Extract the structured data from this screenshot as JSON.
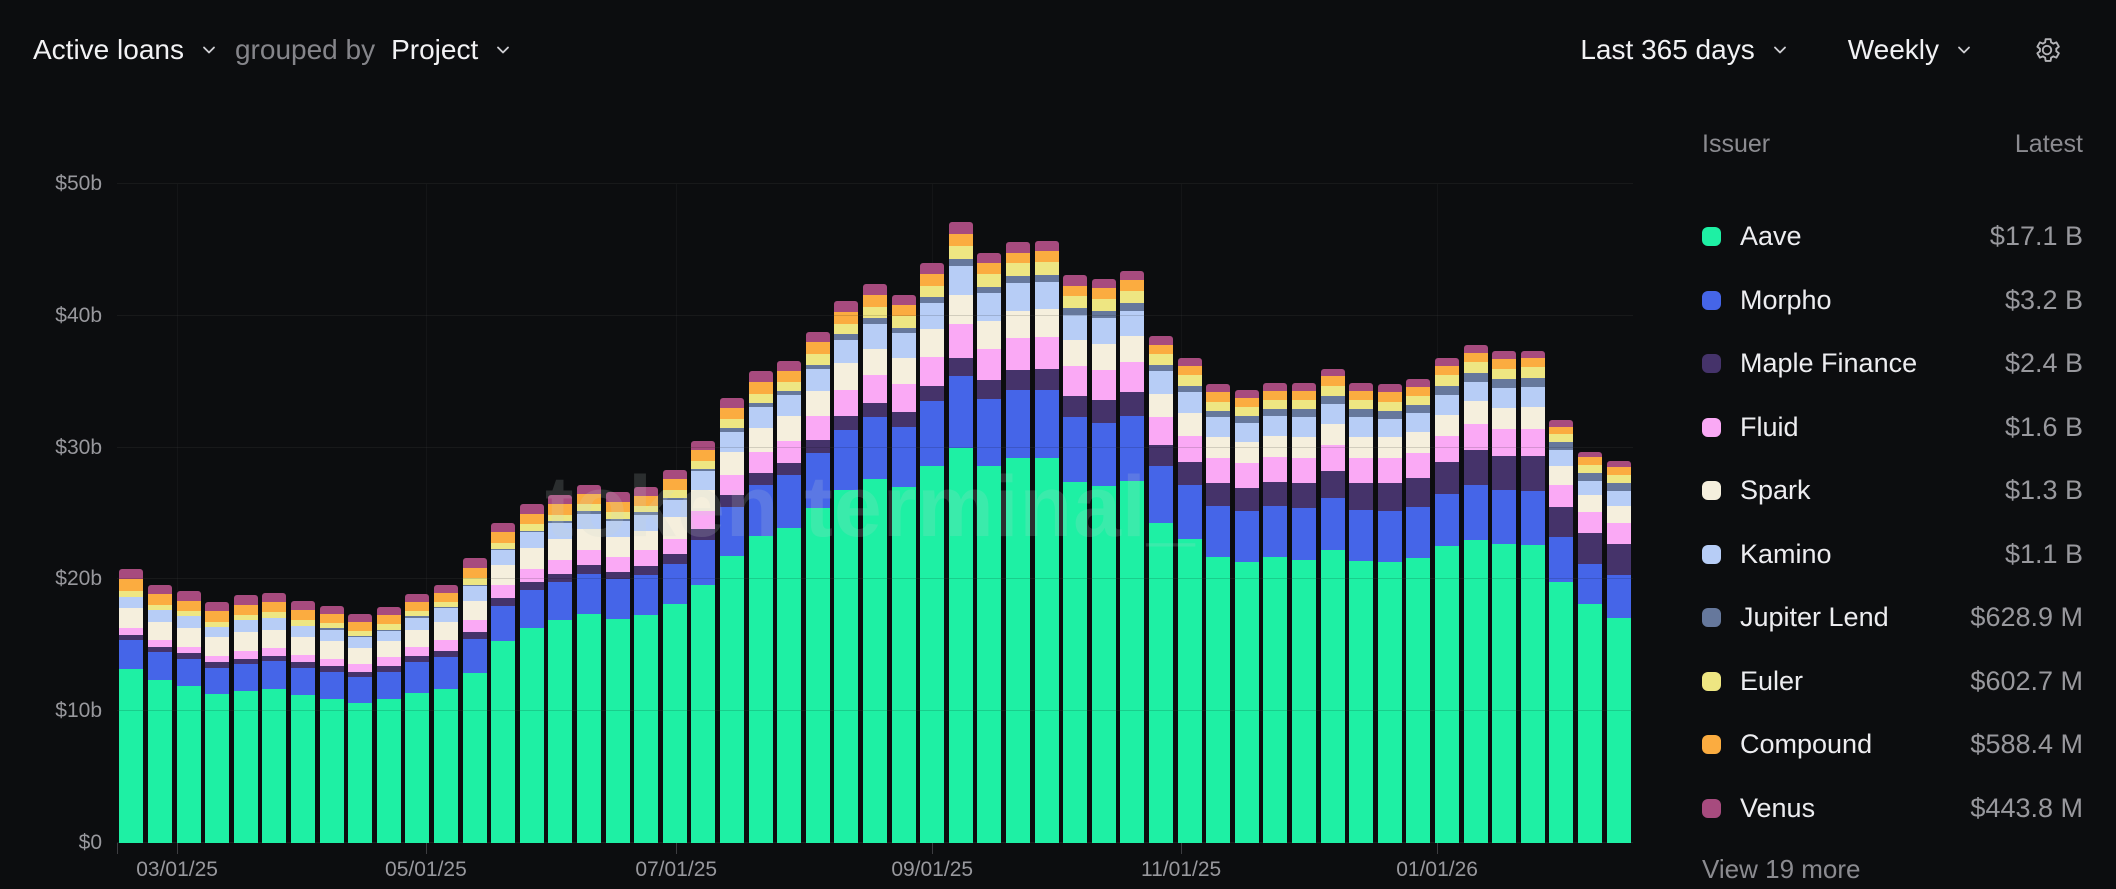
{
  "header": {
    "metric_label": "Active loans",
    "grouped_by_label": "grouped by",
    "group_value": "Project",
    "range_value": "Last 365 days",
    "interval_value": "Weekly"
  },
  "watermark": "token terminal_",
  "legend": {
    "issuer_header": "Issuer",
    "latest_header": "Latest",
    "view_more_label": "View 19 more",
    "items": [
      {
        "name": "Aave",
        "latest": "$17.1 B",
        "color": "#1ef0a4"
      },
      {
        "name": "Morpho",
        "latest": "$3.2 B",
        "color": "#4565e8"
      },
      {
        "name": "Maple Finance",
        "latest": "$2.4 B",
        "color": "#45336a"
      },
      {
        "name": "Fluid",
        "latest": "$1.6 B",
        "color": "#faa9f5"
      },
      {
        "name": "Spark",
        "latest": "$1.3 B",
        "color": "#f5efdd"
      },
      {
        "name": "Kamino",
        "latest": "$1.1 B",
        "color": "#b7cdf6"
      },
      {
        "name": "Jupiter Lend",
        "latest": "$628.9 M",
        "color": "#66789c"
      },
      {
        "name": "Euler",
        "latest": "$602.7 M",
        "color": "#eee682"
      },
      {
        "name": "Compound",
        "latest": "$588.4 M",
        "color": "#fbac40"
      },
      {
        "name": "Venus",
        "latest": "$443.8 M",
        "color": "#a74b7e"
      }
    ]
  },
  "chart_data": {
    "type": "bar",
    "stacked": true,
    "weeks": 53,
    "y_unit": "$ billions",
    "ylim": [
      0,
      50
    ],
    "grid": true,
    "legend_position": "right",
    "y_ticks": [
      {
        "label": "$0",
        "value": 0
      },
      {
        "label": "$10b",
        "value": 10
      },
      {
        "label": "$20b",
        "value": 20
      },
      {
        "label": "$30b",
        "value": 30
      },
      {
        "label": "$40b",
        "value": 40
      },
      {
        "label": "$50b",
        "value": 50
      }
    ],
    "x_ticks": [
      {
        "label": "03/01/25",
        "index": 2.1
      },
      {
        "label": "05/01/25",
        "index": 10.8
      },
      {
        "label": "07/01/25",
        "index": 19.55
      },
      {
        "label": "09/01/25",
        "index": 28.5
      },
      {
        "label": "11/01/25",
        "index": 37.2
      },
      {
        "label": "01/01/26",
        "index": 46.15
      }
    ],
    "series": [
      {
        "name": "Aave",
        "color": "#1ef0a4",
        "values": [
          13.2,
          12.4,
          11.9,
          11.3,
          11.5,
          11.7,
          11.2,
          10.9,
          10.6,
          10.9,
          11.4,
          11.7,
          12.9,
          15.3,
          16.3,
          16.9,
          17.4,
          17.0,
          17.3,
          18.1,
          19.6,
          21.8,
          23.3,
          23.9,
          25.4,
          26.8,
          27.6,
          27.0,
          28.6,
          30.0,
          28.6,
          29.2,
          29.2,
          27.4,
          27.1,
          27.5,
          24.3,
          23.1,
          21.7,
          21.3,
          21.7,
          21.5,
          22.2,
          21.4,
          21.3,
          21.6,
          22.5,
          23.0,
          22.7,
          22.6,
          19.8,
          18.1,
          17.1
        ]
      },
      {
        "name": "Morpho",
        "color": "#4565e8",
        "values": [
          2.2,
          2.1,
          2.1,
          2.0,
          2.1,
          2.1,
          2.1,
          2.1,
          2.0,
          2.1,
          2.3,
          2.4,
          2.6,
          2.7,
          2.9,
          2.9,
          3.0,
          3.0,
          3.0,
          3.1,
          3.4,
          3.7,
          3.9,
          4.0,
          4.2,
          4.5,
          4.7,
          4.6,
          4.9,
          5.4,
          5.1,
          5.2,
          5.2,
          4.9,
          4.8,
          4.9,
          4.3,
          4.1,
          3.9,
          3.9,
          3.9,
          3.9,
          4.0,
          3.9,
          3.9,
          3.9,
          4.0,
          4.2,
          4.1,
          4.1,
          3.4,
          3.1,
          3.2
        ]
      },
      {
        "name": "Maple Finance",
        "color": "#45336a",
        "values": [
          0.4,
          0.4,
          0.4,
          0.4,
          0.4,
          0.4,
          0.4,
          0.4,
          0.4,
          0.4,
          0.5,
          0.5,
          0.5,
          0.6,
          0.6,
          0.6,
          0.7,
          0.6,
          0.7,
          0.7,
          0.8,
          0.9,
          0.9,
          0.9,
          1.0,
          1.1,
          1.1,
          1.1,
          1.2,
          1.4,
          1.4,
          1.5,
          1.6,
          1.6,
          1.7,
          1.8,
          1.6,
          1.7,
          1.7,
          1.7,
          1.8,
          1.9,
          2.0,
          2.0,
          2.1,
          2.2,
          2.4,
          2.6,
          2.6,
          2.7,
          2.3,
          2.3,
          2.4
        ]
      },
      {
        "name": "Fluid",
        "color": "#faa9f5",
        "values": [
          0.5,
          0.5,
          0.5,
          0.5,
          0.6,
          0.6,
          0.6,
          0.6,
          0.6,
          0.7,
          0.7,
          0.8,
          0.9,
          1.0,
          1.0,
          1.1,
          1.1,
          1.1,
          1.2,
          1.2,
          1.4,
          1.5,
          1.6,
          1.7,
          1.8,
          2.0,
          2.1,
          2.1,
          2.2,
          2.6,
          2.4,
          2.4,
          2.4,
          2.3,
          2.3,
          2.3,
          2.1,
          2.0,
          1.9,
          1.9,
          1.9,
          1.9,
          2.0,
          1.9,
          1.9,
          1.9,
          2.0,
          2.0,
          2.0,
          2.0,
          1.7,
          1.6,
          1.6
        ]
      },
      {
        "name": "Spark",
        "color": "#f5efdd",
        "values": [
          1.5,
          1.4,
          1.4,
          1.4,
          1.4,
          1.4,
          1.3,
          1.3,
          1.2,
          1.2,
          1.3,
          1.4,
          1.5,
          1.5,
          1.6,
          1.6,
          1.6,
          1.5,
          1.5,
          1.6,
          1.6,
          1.8,
          1.8,
          1.9,
          1.9,
          2.0,
          2.0,
          2.0,
          2.1,
          2.2,
          2.1,
          2.1,
          2.1,
          2.0,
          2.0,
          2.0,
          1.8,
          1.7,
          1.6,
          1.6,
          1.6,
          1.6,
          1.6,
          1.6,
          1.6,
          1.6,
          1.6,
          1.7,
          1.6,
          1.7,
          1.4,
          1.3,
          1.3
        ]
      },
      {
        "name": "Kamino",
        "color": "#b7cdf6",
        "values": [
          0.9,
          0.9,
          0.9,
          0.8,
          0.9,
          0.9,
          0.9,
          0.9,
          0.8,
          0.8,
          0.9,
          1.0,
          1.1,
          1.1,
          1.2,
          1.2,
          1.2,
          1.2,
          1.2,
          1.3,
          1.4,
          1.5,
          1.6,
          1.6,
          1.7,
          1.8,
          1.9,
          1.9,
          2.0,
          2.2,
          2.1,
          2.1,
          2.1,
          1.9,
          1.9,
          1.9,
          1.7,
          1.6,
          1.5,
          1.5,
          1.5,
          1.5,
          1.5,
          1.5,
          1.4,
          1.4,
          1.5,
          1.5,
          1.5,
          1.5,
          1.2,
          1.1,
          1.1
        ]
      },
      {
        "name": "Jupiter Lend",
        "color": "#66789c",
        "values": [
          0.0,
          0.0,
          0.0,
          0.0,
          0.0,
          0.0,
          0.0,
          0.1,
          0.1,
          0.1,
          0.1,
          0.1,
          0.1,
          0.1,
          0.1,
          0.1,
          0.2,
          0.2,
          0.2,
          0.2,
          0.2,
          0.3,
          0.3,
          0.3,
          0.3,
          0.4,
          0.4,
          0.4,
          0.4,
          0.5,
          0.5,
          0.5,
          0.5,
          0.5,
          0.6,
          0.6,
          0.5,
          0.5,
          0.5,
          0.5,
          0.5,
          0.6,
          0.6,
          0.6,
          0.6,
          0.6,
          0.7,
          0.7,
          0.7,
          0.7,
          0.6,
          0.6,
          0.63
        ]
      },
      {
        "name": "Euler",
        "color": "#eee682",
        "values": [
          0.4,
          0.4,
          0.4,
          0.4,
          0.4,
          0.4,
          0.4,
          0.4,
          0.4,
          0.4,
          0.4,
          0.4,
          0.5,
          0.5,
          0.5,
          0.5,
          0.5,
          0.5,
          0.5,
          0.6,
          0.6,
          0.7,
          0.7,
          0.7,
          0.8,
          0.8,
          0.9,
          0.9,
          0.9,
          1.0,
          1.0,
          1.0,
          1.0,
          0.9,
          0.9,
          0.9,
          0.8,
          0.8,
          0.7,
          0.7,
          0.7,
          0.7,
          0.8,
          0.7,
          0.7,
          0.7,
          0.8,
          0.8,
          0.8,
          0.8,
          0.6,
          0.6,
          0.6
        ]
      },
      {
        "name": "Compound",
        "color": "#fbac40",
        "values": [
          0.9,
          0.8,
          0.8,
          0.8,
          0.8,
          0.8,
          0.8,
          0.7,
          0.7,
          0.7,
          0.7,
          0.7,
          0.8,
          0.8,
          0.8,
          0.8,
          0.8,
          0.8,
          0.7,
          0.8,
          0.8,
          0.8,
          0.9,
          0.8,
          0.9,
          0.9,
          0.9,
          0.8,
          0.9,
          0.9,
          0.8,
          0.8,
          0.8,
          0.8,
          0.8,
          0.8,
          0.7,
          0.7,
          0.7,
          0.7,
          0.7,
          0.7,
          0.7,
          0.7,
          0.7,
          0.7,
          0.7,
          0.7,
          0.7,
          0.7,
          0.6,
          0.6,
          0.59
        ]
      },
      {
        "name": "Venus",
        "color": "#a74b7e",
        "values": [
          0.8,
          0.7,
          0.7,
          0.7,
          0.7,
          0.7,
          0.7,
          0.6,
          0.6,
          0.6,
          0.6,
          0.6,
          0.7,
          0.7,
          0.7,
          0.7,
          0.7,
          0.7,
          0.7,
          0.7,
          0.7,
          0.8,
          0.8,
          0.8,
          0.8,
          0.8,
          0.8,
          0.8,
          0.8,
          0.9,
          0.8,
          0.8,
          0.8,
          0.8,
          0.7,
          0.7,
          0.7,
          0.6,
          0.6,
          0.6,
          0.6,
          0.6,
          0.6,
          0.6,
          0.6,
          0.6,
          0.6,
          0.6,
          0.6,
          0.5,
          0.5,
          0.4,
          0.44
        ]
      }
    ]
  }
}
